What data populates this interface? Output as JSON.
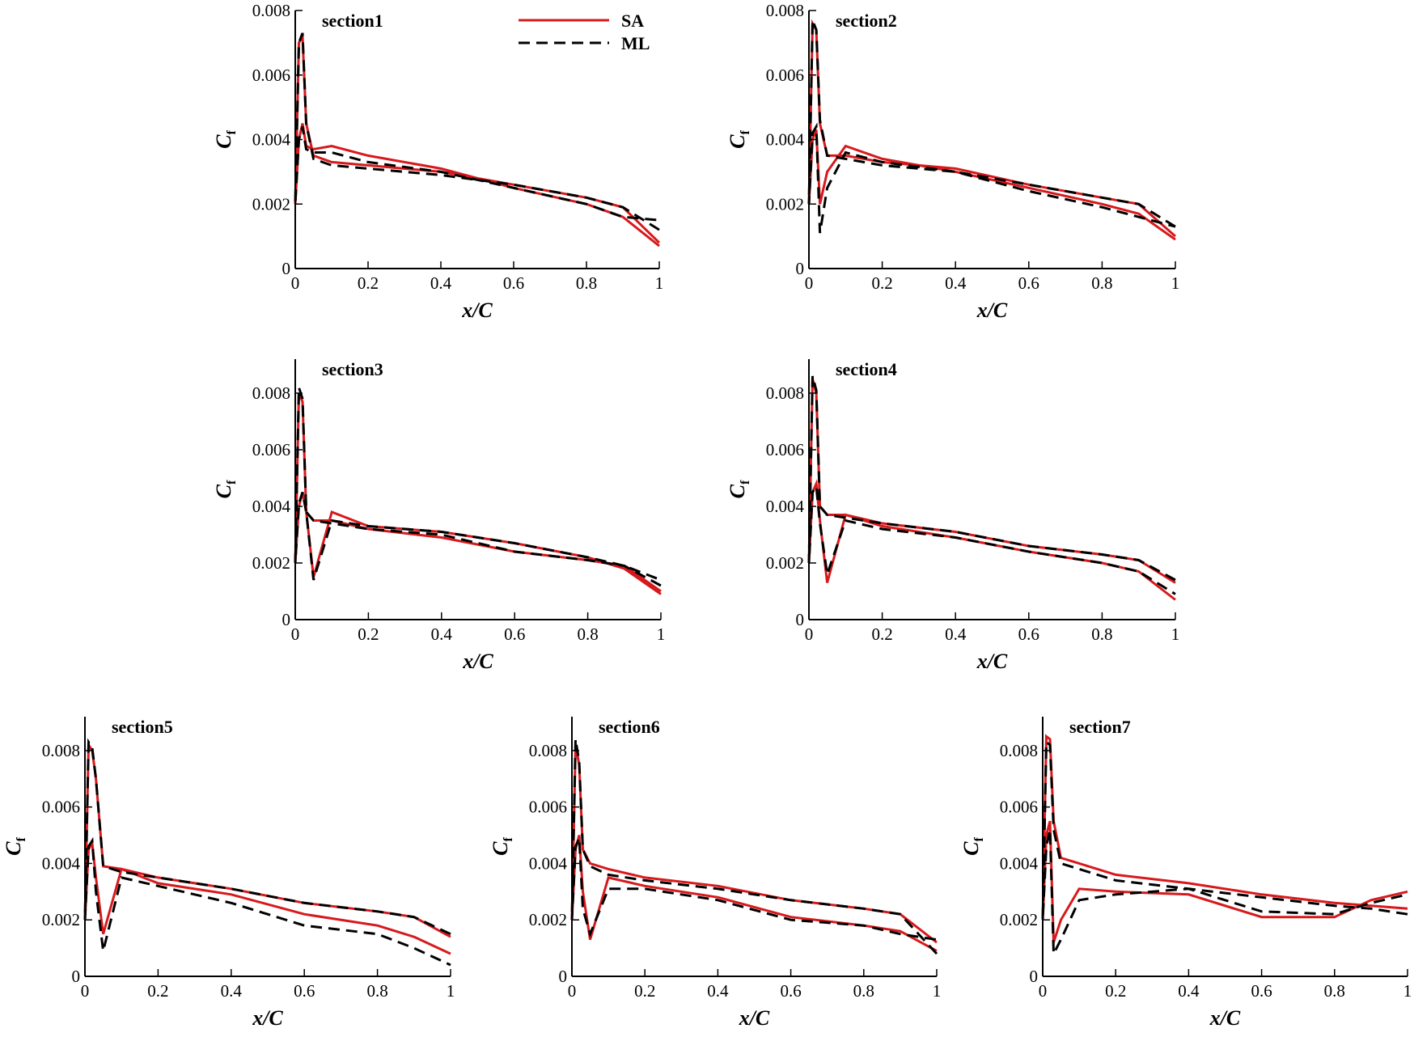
{
  "chart_data": [
    {
      "type": "line",
      "title": "section1",
      "xlabel": "x/C",
      "ylabel": "C",
      "ylabel_subscript": "f",
      "xlim": [
        0,
        1
      ],
      "ylim": [
        0,
        0.008
      ],
      "xticks": [
        0,
        0.2,
        0.4,
        0.6,
        0.8,
        1
      ],
      "yticks": [
        0,
        0.002,
        0.004,
        0.006,
        0.008
      ],
      "legend": "top-center",
      "x": [
        1,
        0.9,
        0.8,
        0.6,
        0.4,
        0.2,
        0.1,
        0.05,
        0.03,
        0.02,
        0.01,
        0,
        0.01,
        0.02,
        0.03,
        0.05,
        0.1,
        0.2,
        0.4,
        0.6,
        0.8,
        0.9,
        1
      ],
      "series": [
        {
          "name": "SA",
          "color": "#d7191c",
          "dash": false,
          "values": [
            0.0008,
            0.0019,
            0.0022,
            0.0026,
            0.003,
            0.0032,
            0.0033,
            0.0035,
            0.0045,
            0.0072,
            0.007,
            0.002,
            0.004,
            0.0045,
            0.0038,
            0.0037,
            0.0038,
            0.0035,
            0.0031,
            0.0025,
            0.002,
            0.0016,
            0.0007
          ]
        },
        {
          "name": "ML",
          "color": "#000000",
          "dash": true,
          "values": [
            0.0012,
            0.0019,
            0.0022,
            0.0026,
            0.0029,
            0.0031,
            0.0032,
            0.0034,
            0.0045,
            0.0073,
            0.007,
            0.002,
            0.004,
            0.0044,
            0.0037,
            0.0036,
            0.0036,
            0.0033,
            0.003,
            0.0025,
            0.002,
            0.0016,
            0.0015
          ]
        }
      ]
    },
    {
      "type": "line",
      "title": "section2",
      "xlabel": "x/C",
      "ylabel": "C",
      "ylabel_subscript": "f",
      "xlim": [
        0,
        1
      ],
      "ylim": [
        0,
        0.008
      ],
      "xticks": [
        0,
        0.2,
        0.4,
        0.6,
        0.8,
        1
      ],
      "yticks": [
        0,
        0.002,
        0.004,
        0.006,
        0.008
      ],
      "x": [
        1,
        0.9,
        0.8,
        0.6,
        0.4,
        0.2,
        0.1,
        0.05,
        0.03,
        0.02,
        0.01,
        0,
        0.01,
        0.02,
        0.03,
        0.05,
        0.1,
        0.2,
        0.4,
        0.6,
        0.8,
        0.9,
        1
      ],
      "series": [
        {
          "color": "#d7191c",
          "dash": false,
          "values": [
            0.001,
            0.002,
            0.0022,
            0.0026,
            0.0031,
            0.0033,
            0.0035,
            0.0035,
            0.0045,
            0.0074,
            0.0076,
            0.002,
            0.004,
            0.0043,
            0.002,
            0.003,
            0.0038,
            0.0034,
            0.003,
            0.0025,
            0.002,
            0.0017,
            0.0009
          ]
        },
        {
          "color": "#000000",
          "dash": true,
          "values": [
            0.0013,
            0.002,
            0.0022,
            0.0026,
            0.003,
            0.0032,
            0.0034,
            0.0035,
            0.0046,
            0.0074,
            0.0077,
            0.002,
            0.0042,
            0.0044,
            0.0011,
            0.0025,
            0.0036,
            0.0033,
            0.003,
            0.0024,
            0.0019,
            0.0016,
            0.0013
          ]
        }
      ]
    },
    {
      "type": "line",
      "title": "section3",
      "xlabel": "x/C",
      "ylabel": "C",
      "ylabel_subscript": "f",
      "xlim": [
        0,
        1
      ],
      "ylim": [
        0,
        0.0092
      ],
      "xticks": [
        0,
        0.2,
        0.4,
        0.6,
        0.8,
        1
      ],
      "yticks": [
        0,
        0.002,
        0.004,
        0.006,
        0.008
      ],
      "x": [
        1,
        0.9,
        0.8,
        0.6,
        0.4,
        0.2,
        0.1,
        0.05,
        0.03,
        0.02,
        0.01,
        0,
        0.01,
        0.02,
        0.03,
        0.05,
        0.1,
        0.2,
        0.4,
        0.6,
        0.8,
        0.9,
        1
      ],
      "series": [
        {
          "color": "#d7191c",
          "dash": false,
          "values": [
            0.001,
            0.0019,
            0.0021,
            0.0024,
            0.0029,
            0.0032,
            0.0035,
            0.0035,
            0.0038,
            0.0077,
            0.008,
            0.002,
            0.004,
            0.0045,
            0.0038,
            0.0015,
            0.0038,
            0.0033,
            0.0031,
            0.0027,
            0.0022,
            0.0018,
            0.0009
          ]
        },
        {
          "color": "#000000",
          "dash": true,
          "values": [
            0.0012,
            0.0019,
            0.0021,
            0.0024,
            0.003,
            0.0032,
            0.0034,
            0.0035,
            0.0038,
            0.0078,
            0.0082,
            0.002,
            0.0041,
            0.0045,
            0.0038,
            0.0014,
            0.0035,
            0.0033,
            0.0031,
            0.0027,
            0.0022,
            0.0019,
            0.0014
          ]
        }
      ]
    },
    {
      "type": "line",
      "title": "section4",
      "xlabel": "x/C",
      "ylabel": "C",
      "ylabel_subscript": "f",
      "xlim": [
        0,
        1
      ],
      "ylim": [
        0,
        0.0092
      ],
      "xticks": [
        0,
        0.2,
        0.4,
        0.6,
        0.8,
        1
      ],
      "yticks": [
        0,
        0.002,
        0.004,
        0.006,
        0.008
      ],
      "x": [
        1,
        0.9,
        0.8,
        0.6,
        0.4,
        0.2,
        0.1,
        0.05,
        0.03,
        0.02,
        0.01,
        0,
        0.01,
        0.02,
        0.03,
        0.05,
        0.1,
        0.2,
        0.4,
        0.6,
        0.8,
        0.9,
        1
      ],
      "series": [
        {
          "color": "#d7191c",
          "dash": false,
          "values": [
            0.0013,
            0.0021,
            0.0023,
            0.0026,
            0.0031,
            0.0034,
            0.0037,
            0.0037,
            0.004,
            0.008,
            0.0085,
            0.002,
            0.0045,
            0.0048,
            0.0035,
            0.0013,
            0.0037,
            0.0033,
            0.0029,
            0.0024,
            0.002,
            0.0017,
            0.0007
          ]
        },
        {
          "color": "#000000",
          "dash": true,
          "values": [
            0.0014,
            0.0021,
            0.0023,
            0.0026,
            0.0031,
            0.0034,
            0.0036,
            0.0037,
            0.004,
            0.0081,
            0.0086,
            0.002,
            0.0045,
            0.0047,
            0.0034,
            0.0016,
            0.0035,
            0.0032,
            0.0029,
            0.0024,
            0.002,
            0.0017,
            0.0009
          ]
        }
      ]
    },
    {
      "type": "line",
      "title": "section5",
      "xlabel": "x/C",
      "ylabel": "C",
      "ylabel_subscript": "f",
      "xlim": [
        0,
        1
      ],
      "ylim": [
        0,
        0.0092
      ],
      "xticks": [
        0,
        0.2,
        0.4,
        0.6,
        0.8,
        1
      ],
      "yticks": [
        0,
        0.002,
        0.004,
        0.006,
        0.008
      ],
      "x": [
        1,
        0.9,
        0.8,
        0.6,
        0.4,
        0.2,
        0.1,
        0.05,
        0.03,
        0.02,
        0.01,
        0,
        0.01,
        0.02,
        0.03,
        0.05,
        0.1,
        0.2,
        0.4,
        0.6,
        0.8,
        0.9,
        1
      ],
      "series": [
        {
          "color": "#d7191c",
          "dash": false,
          "values": [
            0.0014,
            0.0021,
            0.0023,
            0.0026,
            0.0031,
            0.0035,
            0.0038,
            0.0039,
            0.007,
            0.008,
            0.0082,
            0.002,
            0.0045,
            0.0047,
            0.0035,
            0.0015,
            0.0038,
            0.0033,
            0.0029,
            0.0022,
            0.0018,
            0.0014,
            0.0008
          ]
        },
        {
          "color": "#000000",
          "dash": true,
          "values": [
            0.0015,
            0.0021,
            0.0023,
            0.0026,
            0.0031,
            0.0035,
            0.0037,
            0.0039,
            0.007,
            0.0081,
            0.0083,
            0.002,
            0.0046,
            0.0048,
            0.003,
            0.0009,
            0.0035,
            0.0032,
            0.0026,
            0.0018,
            0.0015,
            0.001,
            0.0004
          ]
        }
      ]
    },
    {
      "type": "line",
      "title": "section6",
      "xlabel": "x/C",
      "ylabel": "C",
      "ylabel_subscript": "f",
      "xlim": [
        0,
        1
      ],
      "ylim": [
        0,
        0.0092
      ],
      "xticks": [
        0,
        0.2,
        0.4,
        0.6,
        0.8,
        1
      ],
      "yticks": [
        0,
        0.002,
        0.004,
        0.006,
        0.008
      ],
      "x": [
        1,
        0.9,
        0.8,
        0.6,
        0.4,
        0.2,
        0.1,
        0.05,
        0.03,
        0.02,
        0.01,
        0,
        0.01,
        0.02,
        0.03,
        0.05,
        0.1,
        0.2,
        0.4,
        0.6,
        0.8,
        0.9,
        1
      ],
      "series": [
        {
          "color": "#d7191c",
          "dash": false,
          "values": [
            0.0012,
            0.0022,
            0.0024,
            0.0027,
            0.0032,
            0.0035,
            0.0038,
            0.004,
            0.0045,
            0.0075,
            0.0082,
            0.002,
            0.0045,
            0.005,
            0.003,
            0.0013,
            0.0035,
            0.0032,
            0.0028,
            0.0021,
            0.0018,
            0.0016,
            0.0009
          ]
        },
        {
          "color": "#000000",
          "dash": true,
          "values": [
            0.0008,
            0.0022,
            0.0024,
            0.0027,
            0.0031,
            0.0034,
            0.0036,
            0.0039,
            0.0045,
            0.0076,
            0.0084,
            0.002,
            0.0046,
            0.0049,
            0.0024,
            0.0015,
            0.0031,
            0.0031,
            0.0027,
            0.002,
            0.0018,
            0.0015,
            0.0013
          ]
        }
      ]
    },
    {
      "type": "line",
      "title": "section7",
      "xlabel": "x/C",
      "ylabel": "C",
      "ylabel_subscript": "f",
      "xlim": [
        0,
        1
      ],
      "ylim": [
        0,
        0.0092
      ],
      "xticks": [
        0,
        0.2,
        0.4,
        0.6,
        0.8,
        1
      ],
      "yticks": [
        0,
        0.002,
        0.004,
        0.006,
        0.008
      ],
      "x": [
        1,
        0.9,
        0.8,
        0.6,
        0.4,
        0.2,
        0.1,
        0.05,
        0.03,
        0.02,
        0.01,
        0,
        0.01,
        0.02,
        0.03,
        0.05,
        0.1,
        0.2,
        0.4,
        0.6,
        0.8,
        0.9,
        1
      ],
      "series": [
        {
          "color": "#d7191c",
          "dash": false,
          "values": [
            0.0024,
            0.0025,
            0.0026,
            0.0029,
            0.0033,
            0.0036,
            0.004,
            0.0042,
            0.0055,
            0.0084,
            0.0085,
            0.002,
            0.005,
            0.0055,
            0.0012,
            0.002,
            0.0031,
            0.003,
            0.0029,
            0.0021,
            0.0021,
            0.0027,
            0.003
          ]
        },
        {
          "color": "#000000",
          "dash": true,
          "values": [
            0.0022,
            0.0024,
            0.0025,
            0.0028,
            0.0031,
            0.0034,
            0.0038,
            0.004,
            0.0052,
            0.0082,
            0.0083,
            0.002,
            0.0046,
            0.0052,
            0.0008,
            0.0013,
            0.0027,
            0.0029,
            0.0031,
            0.0023,
            0.0022,
            0.0026,
            0.0029
          ]
        }
      ]
    }
  ]
}
